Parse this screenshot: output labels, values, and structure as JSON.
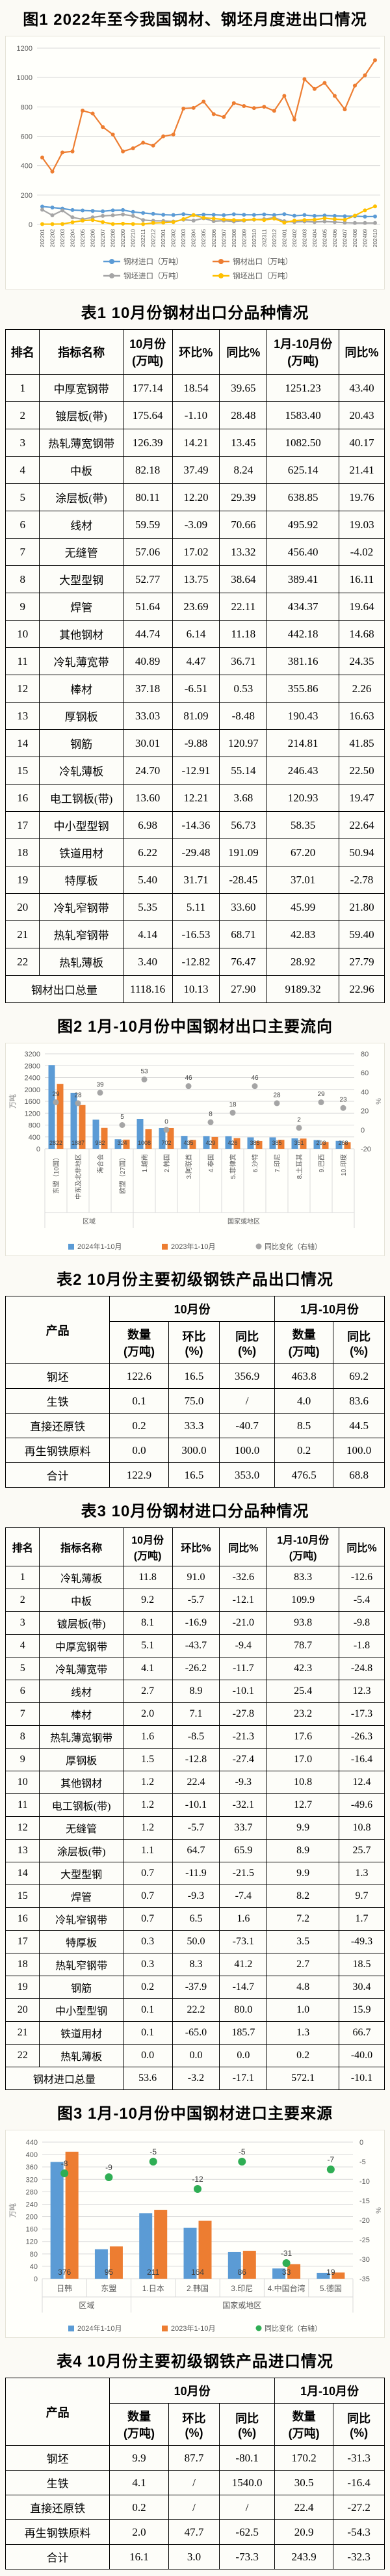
{
  "captions": {
    "fig1": "图1 2022年至今我国钢材、钢坯月度进出口情况",
    "table1": "表1 10月份钢材出口分品种情况",
    "fig2": "图2 1月-10月份中国钢材出口主要流向",
    "table2": "表2 10月份主要初级钢铁产品出口情况",
    "table3": "表3 10月份钢材进口分品种情况",
    "fig3": "图3 1月-10月份中国钢材进口主要来源",
    "table4": "表4 10月份主要初级钢铁产品进口情况"
  },
  "colors": {
    "blue": "#5b9bd5",
    "orange": "#ed7d31",
    "gray": "#a5a5a5",
    "yellow": "#ffc000",
    "green": "#2fae54"
  },
  "tables": {
    "t1": {
      "headers": [
        "排名",
        "指标名称",
        "10月份\n(万吨)",
        "环比%",
        "同比%",
        "1月-10月份\n(万吨)",
        "同比%"
      ],
      "widths": [
        9,
        22,
        13,
        12.5,
        12.5,
        19,
        12
      ],
      "rows": [
        [
          "1",
          "中厚宽钢带",
          "177.14",
          "18.54",
          "39.65",
          "1251.23",
          "43.40"
        ],
        [
          "2",
          "镀层板(带)",
          "175.64",
          "-1.10",
          "28.48",
          "1583.40",
          "20.43"
        ],
        [
          "3",
          "热轧薄宽钢带",
          "126.39",
          "14.21",
          "13.45",
          "1082.50",
          "40.17"
        ],
        [
          "4",
          "中板",
          "82.18",
          "37.49",
          "8.24",
          "625.14",
          "21.41"
        ],
        [
          "5",
          "涂层板(带)",
          "80.11",
          "12.20",
          "29.39",
          "638.85",
          "19.76"
        ],
        [
          "6",
          "线材",
          "59.59",
          "-3.09",
          "70.66",
          "495.92",
          "19.03"
        ],
        [
          "7",
          "无缝管",
          "57.06",
          "17.02",
          "13.32",
          "456.40",
          "-4.02"
        ],
        [
          "8",
          "大型型钢",
          "52.77",
          "13.75",
          "38.64",
          "389.41",
          "16.11"
        ],
        [
          "9",
          "焊管",
          "51.64",
          "23.69",
          "22.11",
          "434.37",
          "19.64"
        ],
        [
          "10",
          "其他钢材",
          "44.74",
          "6.14",
          "11.18",
          "442.18",
          "14.68"
        ],
        [
          "11",
          "冷轧薄宽带",
          "40.89",
          "4.47",
          "36.71",
          "381.16",
          "24.35"
        ],
        [
          "12",
          "棒材",
          "37.18",
          "-6.51",
          "0.53",
          "355.86",
          "2.26"
        ],
        [
          "13",
          "厚钢板",
          "33.03",
          "81.09",
          "-8.48",
          "190.43",
          "16.63"
        ],
        [
          "14",
          "钢筋",
          "30.01",
          "-9.88",
          "120.97",
          "214.81",
          "41.85"
        ],
        [
          "15",
          "冷轧薄板",
          "24.70",
          "-12.91",
          "55.14",
          "246.43",
          "22.50"
        ],
        [
          "16",
          "电工钢板(带)",
          "13.60",
          "12.21",
          "3.68",
          "120.93",
          "19.47"
        ],
        [
          "17",
          "中小型型钢",
          "6.98",
          "-14.36",
          "56.73",
          "58.35",
          "22.64"
        ],
        [
          "18",
          "铁道用材",
          "6.22",
          "-29.48",
          "191.09",
          "67.20",
          "50.94"
        ],
        [
          "19",
          "特厚板",
          "5.40",
          "31.71",
          "-28.45",
          "37.01",
          "-2.78"
        ],
        [
          "20",
          "冷轧窄钢带",
          "5.35",
          "5.11",
          "33.60",
          "45.99",
          "21.80"
        ],
        [
          "21",
          "热轧窄钢带",
          "4.14",
          "-16.53",
          "68.71",
          "42.83",
          "59.40"
        ],
        [
          "22",
          "热轧薄板",
          "3.40",
          "-12.82",
          "76.47",
          "28.92",
          "27.79"
        ]
      ],
      "total": [
        "钢材出口总量",
        "1118.16",
        "10.13",
        "27.90",
        "9189.32",
        "22.96"
      ]
    },
    "t2": {
      "product_header": "产品",
      "group1": {
        "label": "10月份",
        "cols": [
          "数量\n(万吨)",
          "环比\n(%)",
          "同比\n(%)"
        ]
      },
      "group2": {
        "label": "1月-10月份",
        "cols": [
          "数量\n(万吨)",
          "同比\n(%)"
        ]
      },
      "widths": [
        27.5,
        15.5,
        13.5,
        14.5,
        15.5,
        13.5
      ],
      "rows": [
        [
          "钢坯",
          "122.6",
          "16.5",
          "356.9",
          "463.8",
          "69.2"
        ],
        [
          "生铁",
          "0.1",
          "75.0",
          "/",
          "4.0",
          "83.6"
        ],
        [
          "直接还原铁",
          "0.2",
          "33.3",
          "-40.7",
          "8.5",
          "44.5"
        ],
        [
          "再生钢铁原料",
          "0.0",
          "300.0",
          "100.0",
          "0.2",
          "100.0"
        ],
        [
          "合计",
          "122.9",
          "16.5",
          "353.0",
          "476.5",
          "68.8"
        ]
      ]
    },
    "t3": {
      "headers": [
        "排名",
        "指标名称",
        "10月份\n(万吨)",
        "环比%",
        "同比%",
        "1月-10月份\n(万吨)",
        "同比%"
      ],
      "widths": [
        9,
        22,
        13,
        12.5,
        12.5,
        19,
        12
      ],
      "rows": [
        [
          "1",
          "冷轧薄板",
          "11.8",
          "91.0",
          "-32.6",
          "83.3",
          "-12.6"
        ],
        [
          "2",
          "中板",
          "9.2",
          "-5.7",
          "-12.1",
          "109.9",
          "-5.4"
        ],
        [
          "3",
          "镀层板(带)",
          "8.1",
          "-16.9",
          "-21.0",
          "93.8",
          "-9.8"
        ],
        [
          "4",
          "中厚宽钢带",
          "5.1",
          "-43.7",
          "-9.4",
          "78.7",
          "-1.8"
        ],
        [
          "5",
          "冷轧薄宽带",
          "4.1",
          "-26.2",
          "-11.7",
          "42.3",
          "-24.8"
        ],
        [
          "6",
          "线材",
          "2.7",
          "8.9",
          "-10.1",
          "25.4",
          "12.3"
        ],
        [
          "7",
          "棒材",
          "2.0",
          "7.1",
          "-27.8",
          "23.2",
          "-17.3"
        ],
        [
          "8",
          "热轧薄宽钢带",
          "1.6",
          "-8.5",
          "-21.3",
          "17.6",
          "-26.3"
        ],
        [
          "9",
          "厚钢板",
          "1.5",
          "-12.8",
          "-27.4",
          "17.0",
          "-16.4"
        ],
        [
          "10",
          "其他钢材",
          "1.2",
          "22.4",
          "-9.3",
          "10.8",
          "12.4"
        ],
        [
          "11",
          "电工钢板(带)",
          "1.2",
          "-10.1",
          "-32.1",
          "12.7",
          "-49.6"
        ],
        [
          "12",
          "无缝管",
          "1.2",
          "-5.7",
          "33.7",
          "9.9",
          "10.8"
        ],
        [
          "13",
          "涂层板(带)",
          "1.1",
          "64.7",
          "65.9",
          "8.9",
          "25.7"
        ],
        [
          "14",
          "大型型钢",
          "0.7",
          "-11.9",
          "-21.5",
          "9.9",
          "1.3"
        ],
        [
          "15",
          "焊管",
          "0.7",
          "-9.3",
          "-7.4",
          "8.2",
          "9.7"
        ],
        [
          "16",
          "冷轧窄钢带",
          "0.7",
          "6.5",
          "1.6",
          "7.2",
          "1.7"
        ],
        [
          "17",
          "特厚板",
          "0.3",
          "50.0",
          "-73.1",
          "3.5",
          "-49.3"
        ],
        [
          "18",
          "热轧窄钢带",
          "0.3",
          "8.3",
          "41.2",
          "2.7",
          "18.5"
        ],
        [
          "19",
          "钢筋",
          "0.2",
          "-37.9",
          "-14.7",
          "4.8",
          "30.4"
        ],
        [
          "20",
          "中小型型钢",
          "0.1",
          "22.2",
          "80.0",
          "1.0",
          "15.9"
        ],
        [
          "21",
          "铁道用材",
          "0.1",
          "-65.0",
          "185.7",
          "1.3",
          "66.7"
        ],
        [
          "22",
          "热轧薄板",
          "0.0",
          "0.0",
          "0.0",
          "0.2",
          "-40.0"
        ]
      ],
      "total": [
        "钢材进口总量",
        "53.6",
        "-3.2",
        "-17.1",
        "572.1",
        "-10.1"
      ]
    },
    "t4": {
      "product_header": "产品",
      "group1": {
        "label": "10月份",
        "cols": [
          "数量\n(万吨)",
          "环比\n(%)",
          "同比\n(%)"
        ]
      },
      "group2": {
        "label": "1月-10月份",
        "cols": [
          "数量\n(万吨)",
          "同比\n(%)"
        ]
      },
      "widths": [
        27.5,
        15.5,
        13.5,
        14.5,
        15.5,
        13.5
      ],
      "rows": [
        [
          "钢坯",
          "9.9",
          "87.7",
          "-80.1",
          "170.2",
          "-31.3"
        ],
        [
          "生铁",
          "4.1",
          "/",
          "1540.0",
          "30.5",
          "-16.4"
        ],
        [
          "直接还原铁",
          "0.2",
          "/",
          "/",
          "22.4",
          "-27.2"
        ],
        [
          "再生钢铁原料",
          "2.0",
          "47.7",
          "-62.5",
          "20.9",
          "-54.3"
        ],
        [
          "合计",
          "16.1",
          "3.0",
          "-73.3",
          "243.9",
          "-32.3"
        ]
      ]
    }
  },
  "chart_data": [
    {
      "type": "line",
      "title": "图1 2022年至今我国钢材、钢坯月度进出口情况",
      "x": [
        "202201",
        "202202",
        "202203",
        "202204",
        "202205",
        "202206",
        "202207",
        "202208",
        "202209",
        "202210",
        "202211",
        "202212",
        "202301",
        "202302",
        "202303",
        "202304",
        "202305",
        "202306",
        "202307",
        "202308",
        "202309",
        "202310",
        "202311",
        "202312",
        "202401",
        "202402",
        "202403",
        "202404",
        "202405",
        "202406",
        "202407",
        "202408",
        "202409",
        "202410"
      ],
      "ylim": [
        0,
        1200
      ],
      "ystep": 200,
      "grid": true,
      "legend_position": "bottom",
      "series": [
        {
          "name": "钢材进口（万吨）",
          "color": "#5b9bd5",
          "values": [
            122,
            115,
            108,
            98,
            95,
            92,
            89,
            96,
            98,
            85,
            78,
            72,
            66,
            64,
            70,
            63,
            67,
            66,
            63,
            69,
            66,
            65,
            68,
            64,
            70,
            59,
            64,
            58,
            61,
            58,
            56,
            56,
            53,
            54
          ]
        },
        {
          "name": "钢材出口（万吨）",
          "color": "#ed7d31",
          "values": [
            455,
            360,
            490,
            497,
            775,
            755,
            663,
            612,
            497,
            518,
            556,
            537,
            600,
            612,
            789,
            793,
            836,
            751,
            731,
            826,
            806,
            792,
            801,
            773,
            875,
            714,
            989,
            922,
            963,
            875,
            783,
            945,
            1015,
            1118
          ]
        },
        {
          "name": "钢坯进口（万吨）",
          "color": "#a5a5a5",
          "values": [
            100,
            62,
            95,
            48,
            35,
            48,
            58,
            62,
            68,
            58,
            30,
            25,
            24,
            20,
            32,
            26,
            42,
            22,
            26,
            20,
            26,
            32,
            36,
            46,
            22,
            16,
            20,
            16,
            20,
            16,
            12,
            10,
            10,
            10
          ]
        },
        {
          "name": "钢坯出口（万吨）",
          "color": "#ffc000",
          "values": [
            2,
            2,
            3,
            15,
            26,
            30,
            16,
            3,
            5,
            3,
            2,
            10,
            12,
            16,
            36,
            64,
            45,
            40,
            34,
            30,
            30,
            34,
            30,
            40,
            12,
            26,
            30,
            32,
            42,
            36,
            32,
            60,
            96,
            123
          ]
        }
      ]
    },
    {
      "type": "bar",
      "title": "图2 1月-10月份中国钢材出口主要流向",
      "categories": [
        "东盟（10国）",
        "中东及北非地区",
        "海合会",
        "欧盟（27国）",
        "1.越南",
        "2.韩国",
        "3.阿联酋",
        "4.泰国",
        "5.菲律宾",
        "6.沙特",
        "7.印尼",
        "8.土耳其",
        "9.巴西",
        "10.印度"
      ],
      "groups": [
        {
          "label": "区域",
          "span": 4
        },
        {
          "label": "国家或地区",
          "span": 10
        }
      ],
      "ylabel_left": "万吨",
      "ylabel_right": "%",
      "ylim_left": [
        0,
        3200
      ],
      "ystep_left": 400,
      "ylim_right": [
        -20,
        80
      ],
      "ystep_right": 20,
      "legend_position": "bottom",
      "series": [
        {
          "name": "2024年1-10月",
          "type": "bar",
          "color": "#5b9bd5",
          "labels": true,
          "values": [
            2822,
            1887,
            982,
            324,
            1008,
            702,
            435,
            429,
            426,
            385,
            385,
            351,
            293,
            268
          ]
        },
        {
          "name": "2023年1-10月",
          "type": "bar",
          "color": "#ed7d31",
          "labels": false,
          "values": [
            2188,
            1474,
            706,
            309,
            659,
            702,
            298,
            397,
            361,
            264,
            301,
            344,
            227,
            218
          ]
        },
        {
          "name": "同比变化（右轴）",
          "type": "scatter",
          "color": "#a5a5a5",
          "labels": true,
          "values": [
            29,
            28,
            39,
            5,
            53,
            0,
            46,
            8,
            18,
            46,
            28,
            2,
            29,
            23
          ]
        }
      ]
    },
    {
      "type": "bar",
      "title": "图3 1月-10月份中国钢材进口主要来源",
      "categories": [
        "日韩",
        "东盟",
        "1.日本",
        "2.韩国",
        "3.印尼",
        "4.中国台湾",
        "5.德国"
      ],
      "groups": [
        {
          "label": "区域",
          "span": 2
        },
        {
          "label": "国家或地区",
          "span": 5
        }
      ],
      "ylabel_left": "万吨",
      "ylabel_right": "%",
      "ylim_left": [
        0,
        440
      ],
      "ystep_left": 40,
      "ylim_right": [
        -35,
        0
      ],
      "ystep_right": 5,
      "legend_position": "bottom",
      "series": [
        {
          "name": "2024年1-10月",
          "type": "bar",
          "color": "#5b9bd5",
          "labels": true,
          "values": [
            376,
            95,
            211,
            164,
            86,
            33,
            19
          ]
        },
        {
          "name": "2023年1-10月",
          "type": "bar",
          "color": "#ed7d31",
          "labels": false,
          "values": [
            409,
            104,
            222,
            187,
            90,
            47,
            20
          ]
        },
        {
          "name": "同比变化（右轴）",
          "type": "scatter",
          "color": "#2fae54",
          "labels": true,
          "values": [
            -8,
            -9,
            -5,
            -12,
            -5,
            -31,
            -7
          ]
        }
      ]
    }
  ]
}
